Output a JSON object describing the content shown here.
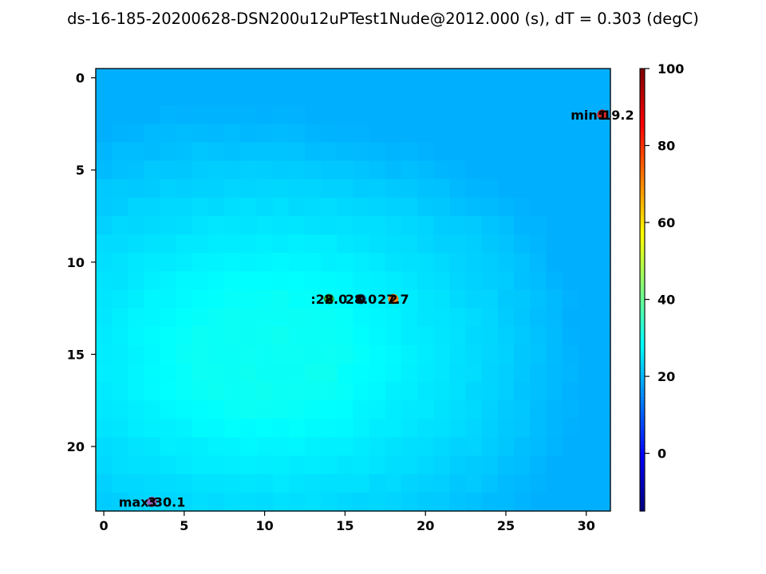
{
  "chart_data": {
    "type": "heatmap",
    "title": "ds-16-185-20200628-DSN200u12uPTest1Nude@2012.000 (s), dT = 0.303 (degC)",
    "colormap": "jet",
    "x_ticks": [
      0,
      5,
      10,
      15,
      20,
      25,
      30
    ],
    "y_ticks": [
      0,
      5,
      10,
      15,
      20
    ],
    "xlim": [
      -0.5,
      31.5
    ],
    "ylim": [
      23.5,
      -0.5
    ],
    "colorbar": {
      "range": [
        -15,
        100
      ],
      "ticks": [
        0,
        20,
        40,
        60,
        80,
        100
      ]
    },
    "grid_shape": [
      24,
      32
    ],
    "grid_min": 19.2,
    "grid_max": 30.1,
    "markers": [
      {
        "x": 31,
        "y": 2,
        "label": "min:19.2",
        "color": "#d62728",
        "number": "1"
      },
      {
        "x": 3,
        "y": 23,
        "label": "max:30.1",
        "color": "#9467bd",
        "number": "3"
      },
      {
        "x": 14,
        "y": 12,
        "label": ":28.0",
        "color": "#2ca02c",
        "number": "2"
      },
      {
        "x": 16,
        "y": 12,
        "label": "28.0",
        "color": "#1f77b4",
        "number": "0"
      },
      {
        "x": 18,
        "y": 12,
        "label": "27.7",
        "color": "#ff7f0e",
        "number": "2"
      }
    ]
  }
}
